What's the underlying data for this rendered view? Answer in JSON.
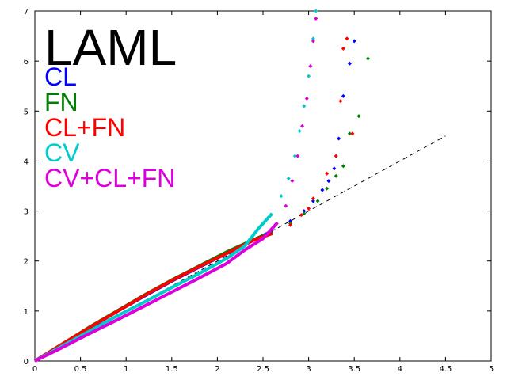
{
  "chart_data": {
    "type": "scatter",
    "title": "LAML",
    "xlabel": "",
    "ylabel": "",
    "xlim": [
      0,
      5
    ],
    "ylim": [
      0,
      7
    ],
    "x_ticks": [
      "0",
      "0.5",
      "1",
      "1.5",
      "2",
      "2.5",
      "3",
      "3.5",
      "4",
      "4.5",
      "5"
    ],
    "y_ticks": [
      "0",
      "1",
      "2",
      "3",
      "4",
      "5",
      "6",
      "7"
    ],
    "grid": false,
    "legend_position": "top-left",
    "reference_line": {
      "x": [
        0,
        4.5
      ],
      "y": [
        0,
        4.5
      ],
      "style": "dashed",
      "color": "#000000"
    },
    "series": [
      {
        "name": "CL",
        "color": "#0000ff",
        "x": [
          0.0,
          0.3,
          0.6,
          0.9,
          1.2,
          1.5,
          1.8,
          2.1,
          2.4,
          2.6,
          2.8,
          2.95,
          3.05,
          3.15,
          3.22,
          3.28,
          3.33,
          3.38,
          3.45,
          3.5
        ],
        "y": [
          0.0,
          0.33,
          0.66,
          0.99,
          1.3,
          1.6,
          1.88,
          2.15,
          2.42,
          2.6,
          2.8,
          3.0,
          3.2,
          3.42,
          3.6,
          3.85,
          4.45,
          5.3,
          5.95,
          6.4
        ]
      },
      {
        "name": "FN",
        "color": "#008000",
        "x": [
          0.0,
          0.3,
          0.6,
          0.9,
          1.2,
          1.5,
          1.8,
          2.1,
          2.4,
          2.6,
          2.8,
          2.95,
          3.1,
          3.2,
          3.3,
          3.38,
          3.45,
          3.55,
          3.65
        ],
        "y": [
          0.0,
          0.34,
          0.68,
          1.0,
          1.32,
          1.62,
          1.9,
          2.18,
          2.43,
          2.58,
          2.75,
          2.95,
          3.2,
          3.45,
          3.7,
          3.9,
          4.55,
          4.9,
          6.05
        ]
      },
      {
        "name": "CL+FN",
        "color": "#ff0000",
        "x": [
          0.0,
          0.3,
          0.6,
          0.9,
          1.2,
          1.5,
          1.8,
          2.1,
          2.4,
          2.6,
          2.8,
          2.92,
          3.0,
          3.05,
          3.2,
          3.3,
          3.35,
          3.38,
          3.42,
          3.48
        ],
        "y": [
          0.0,
          0.34,
          0.67,
          0.99,
          1.31,
          1.61,
          1.89,
          2.15,
          2.42,
          2.55,
          2.72,
          2.92,
          3.05,
          3.25,
          3.75,
          4.1,
          5.2,
          6.25,
          6.45,
          4.55
        ]
      },
      {
        "name": "CV",
        "color": "#00cccc",
        "x": [
          0.0,
          0.3,
          0.6,
          0.9,
          1.2,
          1.5,
          1.8,
          2.1,
          2.3,
          2.45,
          2.6,
          2.7,
          2.78,
          2.85,
          2.9,
          2.95,
          3.0,
          3.05,
          3.08
        ],
        "y": [
          0.0,
          0.3,
          0.6,
          0.9,
          1.18,
          1.47,
          1.75,
          2.05,
          2.3,
          2.65,
          2.95,
          3.3,
          3.65,
          4.1,
          4.6,
          5.1,
          5.7,
          6.45,
          7.0
        ]
      },
      {
        "name": "CV+CL+FN",
        "color": "#dd00dd",
        "x": [
          0.0,
          0.3,
          0.6,
          0.9,
          1.2,
          1.5,
          1.8,
          2.1,
          2.3,
          2.5,
          2.65,
          2.75,
          2.82,
          2.88,
          2.93,
          2.98,
          3.02,
          3.05,
          3.08
        ],
        "y": [
          0.0,
          0.27,
          0.55,
          0.82,
          1.1,
          1.38,
          1.66,
          1.95,
          2.22,
          2.45,
          2.75,
          3.1,
          3.6,
          4.1,
          4.7,
          5.25,
          5.9,
          6.4,
          6.85
        ]
      }
    ]
  }
}
